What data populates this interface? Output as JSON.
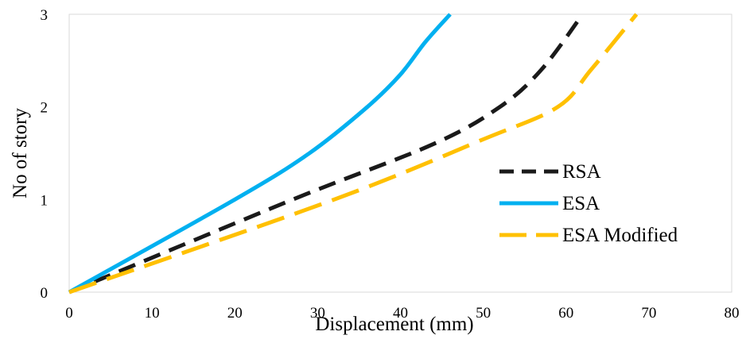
{
  "chart_data": {
    "type": "line",
    "xlabel": "Displacement (mm)",
    "ylabel": "No of story",
    "xlim": [
      0,
      80
    ],
    "ylim": [
      0,
      3
    ],
    "x_ticks": [
      "0",
      "10",
      "20",
      "30",
      "40",
      "50",
      "60",
      "70",
      "80"
    ],
    "y_ticks": [
      "0",
      "1",
      "2",
      "3"
    ],
    "grid": false,
    "legend_position": "right",
    "series": [
      {
        "name": "RSA",
        "color": "#1a1a1a",
        "dash": "dashed",
        "points": [
          [
            0,
            0
          ],
          [
            27,
            1
          ],
          [
            44,
            1.6
          ],
          [
            52,
            2
          ],
          [
            57,
            2.4
          ],
          [
            62,
            3
          ]
        ]
      },
      {
        "name": "ESA",
        "color": "#00b0f0",
        "dash": "solid",
        "points": [
          [
            0,
            0
          ],
          [
            20,
            1
          ],
          [
            29,
            1.5
          ],
          [
            36,
            2
          ],
          [
            40,
            2.35
          ],
          [
            43,
            2.7
          ],
          [
            46,
            3
          ]
        ]
      },
      {
        "name": "ESA Modified",
        "color": "#ffc000",
        "dash": "longdash",
        "points": [
          [
            0,
            0
          ],
          [
            32,
            1
          ],
          [
            50,
            1.65
          ],
          [
            59,
            2
          ],
          [
            63,
            2.4
          ],
          [
            68.5,
            3
          ]
        ]
      }
    ]
  }
}
